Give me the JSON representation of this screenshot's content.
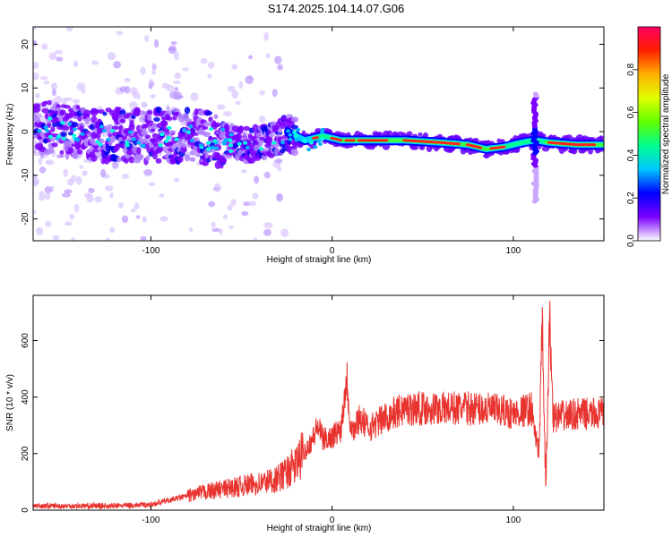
{
  "title": "S174.2025.104.14.07.G06",
  "chart_data": [
    {
      "type": "heatmap",
      "xlabel": "Height of straight line (km)",
      "ylabel": "Frequency (Hz)",
      "xlim": [
        -165,
        150
      ],
      "ylim": [
        -25,
        24
      ],
      "xticks": [
        -100,
        0,
        100
      ],
      "yticks": [
        -20,
        -10,
        0,
        10,
        20
      ],
      "colorbar": {
        "label": "Normalized spectral amplitude",
        "range": [
          0,
          1
        ],
        "ticks": [
          "0.0",
          "0.2",
          "0.4",
          "0.6",
          "0.8"
        ],
        "colors": [
          "#ffffff",
          "#7a00ff",
          "#0000ff",
          "#00c8ff",
          "#00ff90",
          "#60ff00",
          "#e0ff00",
          "#ffb000",
          "#ff2000",
          "#ff0060"
        ]
      },
      "ridge": {
        "x": [
          -165,
          -140,
          -120,
          -100,
          -80,
          -60,
          -45,
          -30,
          -25,
          -15,
          -5,
          5,
          20,
          40,
          60,
          75,
          85,
          95,
          105,
          112,
          120,
          135,
          150
        ],
        "frequency_hz": [
          1,
          0,
          -1,
          -1,
          -1,
          -2,
          -3,
          -2,
          0,
          -2,
          -1,
          -2,
          -2,
          -2,
          -2.5,
          -3,
          -4,
          -3.5,
          -2.5,
          -2,
          -2.5,
          -3,
          -3
        ]
      },
      "spike": {
        "x": 112,
        "frequency_hz_range": [
          -16,
          9
        ]
      }
    },
    {
      "type": "line",
      "xlabel": "Height of straight line (km)",
      "ylabel": "SNR (10 * v/v)",
      "xlim": [
        -165,
        150
      ],
      "ylim": [
        0,
        760
      ],
      "xticks": [
        -100,
        0,
        100
      ],
      "yticks": [
        0,
        200,
        400,
        600
      ],
      "color": "#e8342f",
      "series": [
        {
          "x": [
            -165,
            -140,
            -120,
            -100,
            -90,
            -80,
            -70,
            -60,
            -50,
            -40,
            -30,
            -20,
            -15,
            -10,
            -8,
            -5,
            0,
            5,
            8,
            10,
            12,
            15,
            20,
            25,
            30,
            40,
            60,
            80,
            95,
            100,
            110,
            114,
            116,
            118,
            120,
            122,
            125,
            135,
            150
          ],
          "values": [
            15,
            15,
            15,
            20,
            35,
            50,
            65,
            75,
            85,
            95,
            110,
            160,
            210,
            260,
            300,
            250,
            260,
            290,
            480,
            310,
            280,
            330,
            290,
            310,
            330,
            360,
            360,
            360,
            350,
            340,
            360,
            190,
            640,
            60,
            680,
            330,
            330,
            340,
            340
          ]
        }
      ]
    }
  ]
}
